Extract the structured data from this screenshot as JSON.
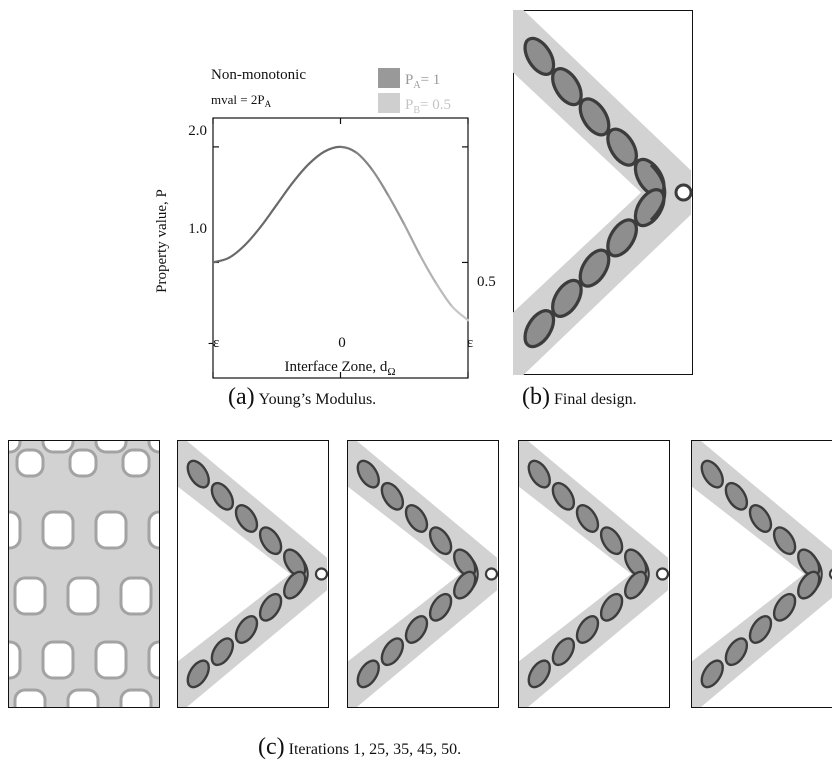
{
  "chart_data": {
    "type": "line",
    "title": "Non-monotonic",
    "subtitle": "mval = 2P",
    "subtitle_sub": "A",
    "xlabel": "Interface Zone, d",
    "xlabel_sub": "Ω",
    "ylabel": "Property value, P",
    "x_ticks": [
      "-ε",
      "0",
      "ε"
    ],
    "y_ticks": [
      "1.0",
      "2.0"
    ],
    "end_label": "0.5",
    "xlim": [
      -1,
      1
    ],
    "ylim": [
      0.0,
      2.25
    ],
    "x": [
      -1.0,
      -0.875,
      -0.75,
      -0.625,
      -0.5,
      -0.375,
      -0.25,
      -0.125,
      0.0,
      0.125,
      0.25,
      0.375,
      0.5,
      0.625,
      0.75,
      0.875,
      1.0
    ],
    "series": [
      {
        "values": [
          1.0,
          1.04,
          1.15,
          1.31,
          1.5,
          1.69,
          1.85,
          1.96,
          2.0,
          1.95,
          1.8,
          1.58,
          1.33,
          1.06,
          0.82,
          0.62,
          0.5
        ]
      }
    ],
    "legend": [
      {
        "label": "P",
        "sub": "A",
        "value_text": "= 1",
        "color": "#999999"
      },
      {
        "label": "P",
        "sub": "B",
        "value_text": "= 0.5",
        "color": "#cfcfcf"
      }
    ],
    "legend_position": "top-right",
    "grid": false
  },
  "captions": {
    "a_letter": "(a)",
    "a_text": "Young’s Modulus.",
    "b_letter": "(b)",
    "b_text": "Final design.",
    "c_letter": "(c)",
    "c_text": "Iterations 1, 25, 35, 45, 50."
  },
  "colors": {
    "material_a": "#8e8e8e",
    "material_b": "#d2d2d2",
    "outline": "#3c3c3c"
  }
}
